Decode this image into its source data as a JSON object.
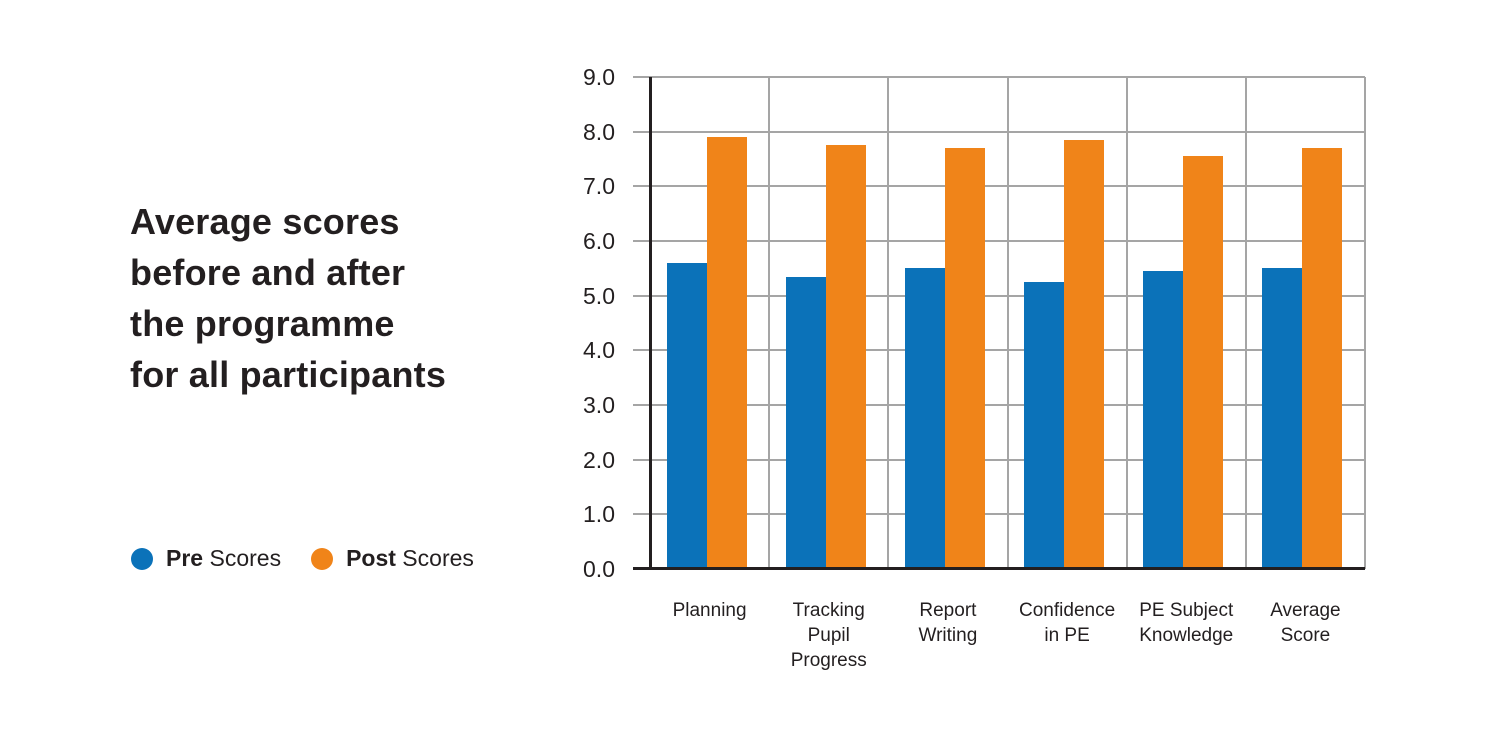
{
  "title": {
    "text": "Average scores\nbefore and after\nthe programme\nfor all participants"
  },
  "legend": {
    "items": [
      {
        "bold": "Pre",
        "rest": " Scores",
        "color": "#0b72b9"
      },
      {
        "bold": "Post",
        "rest": " Scores",
        "color": "#f08419"
      }
    ]
  },
  "chart_data": {
    "type": "bar",
    "title": "Average scores before and after the programme for all participants",
    "categories": [
      "Planning",
      "Tracking Pupil Progress",
      "Report Writing",
      "Confidence in PE",
      "PE Subject Knowledge",
      "Average Score"
    ],
    "category_lines": [
      [
        "Planning"
      ],
      [
        "Tracking",
        "Pupil",
        "Progress"
      ],
      [
        "Report",
        "Writing"
      ],
      [
        "Confidence",
        "in PE"
      ],
      [
        "PE Subject",
        "Knowledge"
      ],
      [
        "Average",
        "Score"
      ]
    ],
    "series": [
      {
        "name": "Pre Scores",
        "color": "#0b72b9",
        "values": [
          5.6,
          5.35,
          5.5,
          5.25,
          5.45,
          5.5
        ]
      },
      {
        "name": "Post Scores",
        "color": "#f08419",
        "values": [
          7.9,
          7.75,
          7.7,
          7.85,
          7.55,
          7.7
        ]
      }
    ],
    "ylim": [
      0,
      9
    ],
    "ytick_step": 1.0,
    "ytick_labels": [
      "0.0",
      "1.0",
      "2.0",
      "3.0",
      "4.0",
      "5.0",
      "6.0",
      "7.0",
      "8.0",
      "9.0"
    ],
    "grid": true,
    "legend_position": "bottom-left"
  },
  "colors": {
    "pre": "#0b72b9",
    "post": "#f08419",
    "grid": "#a5a5a5",
    "axis": "#231f20",
    "text": "#231f20",
    "background": "#ffffff"
  }
}
